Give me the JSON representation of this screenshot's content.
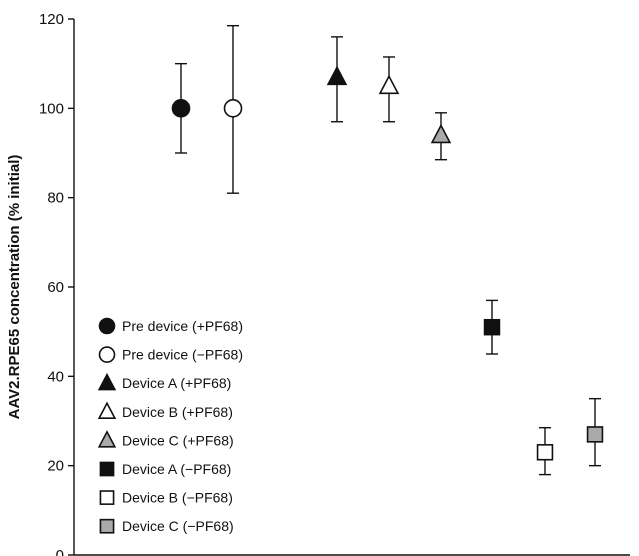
{
  "chart_data": {
    "type": "scatter",
    "title": "",
    "xlabel": "",
    "ylabel": "AAV2.RPE65 concentration (% initial)",
    "ylim": [
      0,
      120
    ],
    "yticks": [
      0,
      20,
      40,
      60,
      80,
      100,
      120
    ],
    "grid": false,
    "legend_position": "bottom-left",
    "series": [
      {
        "name": "Pre device (+PF68)",
        "marker": "circle",
        "fill": "#111111",
        "x": 1,
        "y": 100,
        "err_low": 90,
        "err_high": 110
      },
      {
        "name": "Pre device (−PF68)",
        "marker": "circle",
        "fill": "#ffffff",
        "x": 2,
        "y": 100,
        "err_low": 81,
        "err_high": 118.5
      },
      {
        "name": "Device A (+PF68)",
        "marker": "triangle",
        "fill": "#111111",
        "x": 3,
        "y": 107,
        "err_low": 97,
        "err_high": 116
      },
      {
        "name": "Device B (+PF68)",
        "marker": "triangle",
        "fill": "#ffffff",
        "x": 4,
        "y": 105,
        "err_low": 97,
        "err_high": 111.5
      },
      {
        "name": "Device C (+PF68)",
        "marker": "triangle",
        "fill": "#aaaaaa",
        "x": 5,
        "y": 94,
        "err_low": 88.5,
        "err_high": 99
      },
      {
        "name": "Device A (−PF68)",
        "marker": "square",
        "fill": "#111111",
        "x": 6,
        "y": 51,
        "err_low": 45,
        "err_high": 57
      },
      {
        "name": "Device B (−PF68)",
        "marker": "square",
        "fill": "#ffffff",
        "x": 7,
        "y": 23,
        "err_low": 18,
        "err_high": 28.5
      },
      {
        "name": "Device C (−PF68)",
        "marker": "square",
        "fill": "#aaaaaa",
        "x": 8,
        "y": 27,
        "err_low": 20,
        "err_high": 35
      }
    ]
  }
}
